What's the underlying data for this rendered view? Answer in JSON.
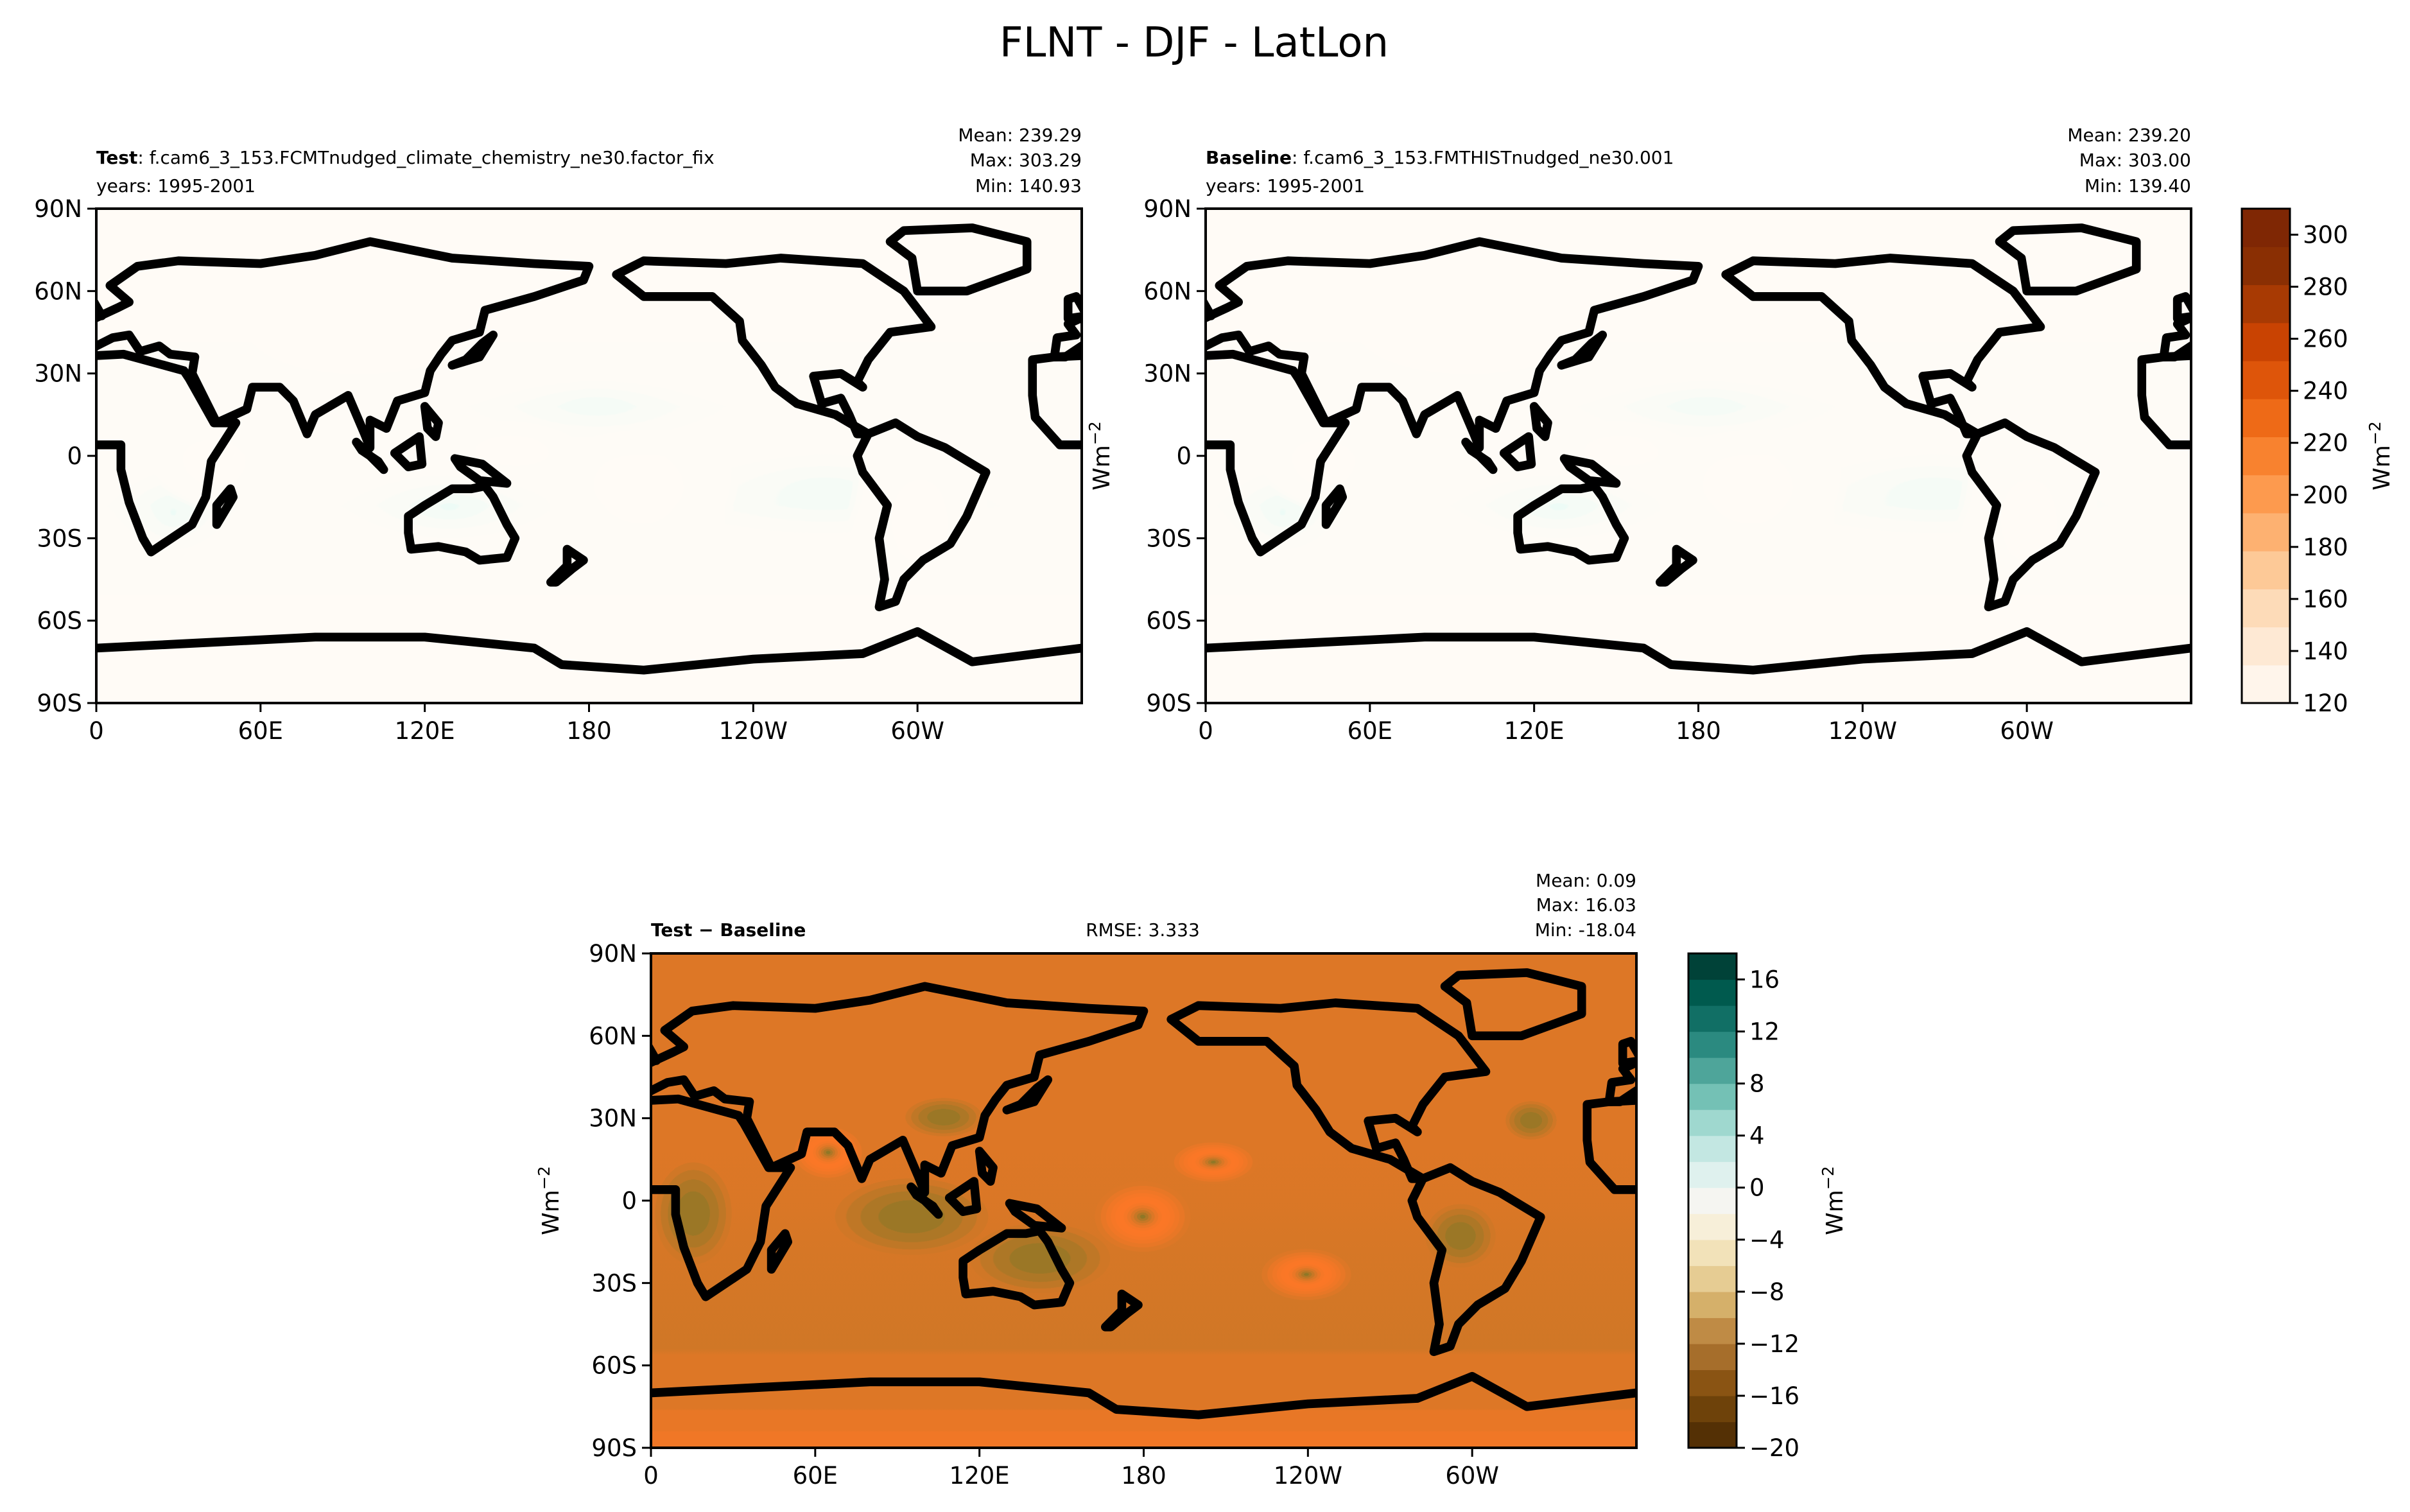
{
  "figure": {
    "title": "FLNT - DJF - LatLon"
  },
  "axes": {
    "lat_ticks": [
      "90N",
      "60N",
      "30N",
      "0",
      "30S",
      "60S",
      "90S"
    ],
    "lon_ticks": [
      "0",
      "60E",
      "120E",
      "180",
      "120W",
      "60W"
    ]
  },
  "panels": {
    "test": {
      "label_bold": "Test",
      "label_rest": ": f.cam6_3_153.FCMTnudged_climate_chemistry_ne30.factor_fix",
      "years": "years: 1995-2001",
      "mean": "Mean: 239.29",
      "max": "Max: 303.29",
      "min": "Min: 140.93"
    },
    "baseline": {
      "label_bold": "Baseline",
      "label_rest": ": f.cam6_3_153.FMTHISTnudged_ne30.001",
      "years": "years: 1995-2001",
      "mean": "Mean: 239.20",
      "max": "Max: 303.00",
      "min": "Min: 139.40"
    },
    "diff": {
      "label_bold": "Test − Baseline",
      "rmse": "RMSE: 3.333",
      "mean": "Mean:  0.09",
      "max": "Max: 16.03",
      "min": "Min: -18.04"
    }
  },
  "colorbars": {
    "main": {
      "unit": "Wm",
      "unit_exp": "−2",
      "ticks": [
        "120",
        "140",
        "160",
        "180",
        "200",
        "220",
        "240",
        "260",
        "280",
        "300"
      ]
    },
    "diff": {
      "unit": "Wm",
      "unit_exp": "−2",
      "ticks": [
        "−20",
        "−16",
        "−12",
        "−8",
        "−4",
        "0",
        "4",
        "8",
        "12",
        "16"
      ]
    }
  },
  "colors": {
    "oranges": [
      "#fff5eb",
      "#fee9d4",
      "#fddbb8",
      "#fdc997",
      "#fdb171",
      "#fd9a4e",
      "#f8822f",
      "#ee6a17",
      "#de550a",
      "#c94302",
      "#a83a03",
      "#8a2f03",
      "#7f2704"
    ],
    "brbg": [
      "#543005",
      "#6e420a",
      "#8a5413",
      "#a66e2b",
      "#bf8b45",
      "#d5b06a",
      "#e6cc93",
      "#f2e2b9",
      "#f7efd9",
      "#f5f5f1",
      "#dff1ee",
      "#c3e7e2",
      "#9fd8cf",
      "#74c1b5",
      "#4ea59a",
      "#2b8a80",
      "#116f65",
      "#005a4e",
      "#004238"
    ]
  },
  "chart_data": [
    {
      "type": "heatmap",
      "name": "Test",
      "x_range": [
        0,
        360
      ],
      "y_range": [
        -90,
        90
      ],
      "value_range": [
        120,
        310
      ],
      "stats": {
        "mean": 239.29,
        "max": 303.29,
        "min": 140.93
      },
      "x_ticks": [
        "0",
        "60E",
        "120E",
        "180",
        "120W",
        "60W"
      ],
      "y_ticks": [
        "90N",
        "60N",
        "30N",
        "0",
        "30S",
        "60S",
        "90S"
      ]
    },
    {
      "type": "heatmap",
      "name": "Baseline",
      "x_range": [
        0,
        360
      ],
      "y_range": [
        -90,
        90
      ],
      "value_range": [
        120,
        310
      ],
      "stats": {
        "mean": 239.2,
        "max": 303.0,
        "min": 139.4
      },
      "x_ticks": [
        "0",
        "60E",
        "120E",
        "180",
        "120W",
        "60W"
      ],
      "y_ticks": [
        "90N",
        "60N",
        "30N",
        "0",
        "30S",
        "60S",
        "90S"
      ]
    },
    {
      "type": "heatmap",
      "name": "Test − Baseline",
      "x_range": [
        0,
        360
      ],
      "y_range": [
        -90,
        90
      ],
      "value_range": [
        -20,
        18
      ],
      "stats": {
        "mean": 0.09,
        "max": 16.03,
        "min": -18.04,
        "rmse": 3.333
      },
      "x_ticks": [
        "0",
        "60E",
        "120E",
        "180",
        "120W",
        "60W"
      ],
      "y_ticks": [
        "90N",
        "60N",
        "30N",
        "0",
        "30S",
        "60S",
        "90S"
      ]
    }
  ]
}
